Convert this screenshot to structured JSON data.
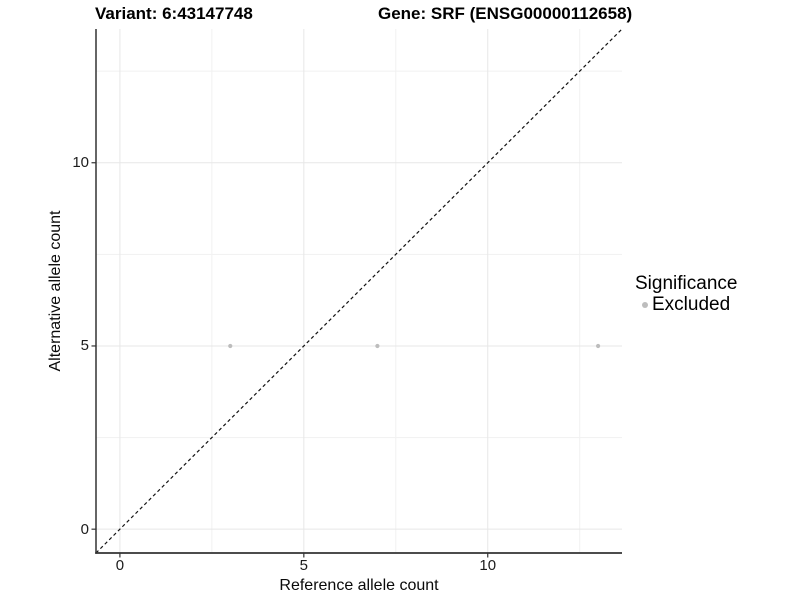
{
  "chart_data": {
    "type": "scatter",
    "title_left": "Variant: 6:43147748",
    "title_right": "Gene: SRF (ENSG00000112658)",
    "xlabel": "Reference allele count",
    "ylabel": "Alternative allele count",
    "xlim": [
      -0.65,
      13.65
    ],
    "ylim": [
      -0.65,
      13.65
    ],
    "xticks": [
      0,
      5,
      10
    ],
    "yticks": [
      0,
      5,
      10
    ],
    "xminor": [
      2.5,
      7.5,
      12.5
    ],
    "yminor": [
      2.5,
      7.5,
      12.5
    ],
    "grid": true,
    "legend": {
      "title": "Significance",
      "position": "right",
      "items": [
        {
          "label": "Excluded",
          "color": "#bdbdbd"
        }
      ]
    },
    "identity_line": {
      "style": "dashed",
      "equation": "y = x",
      "color": "#141414"
    },
    "series": [
      {
        "name": "Excluded",
        "color": "#bdbdbd",
        "points": [
          {
            "x": 3,
            "y": 5
          },
          {
            "x": 7,
            "y": 5
          },
          {
            "x": 13,
            "y": 5
          }
        ]
      }
    ],
    "colors": {
      "background": "#ffffff",
      "grid_major": "#e7e7e7",
      "grid_minor": "#f1f1f1",
      "axis_line": "#333333",
      "point": "#bdbdbd"
    }
  }
}
